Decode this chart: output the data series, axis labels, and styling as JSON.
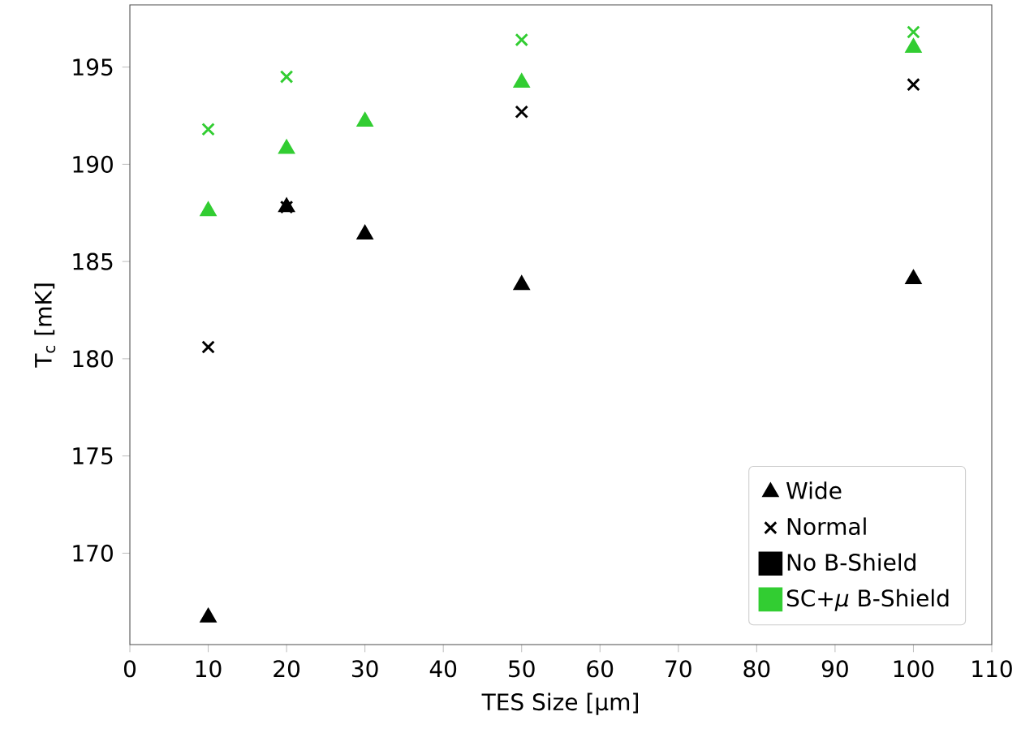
{
  "chart_data": {
    "type": "scatter",
    "xlabel": "TES Size [μm]",
    "ylabel": "T$_{c}$ [mK]",
    "x": [
      10,
      20,
      30,
      50,
      100
    ],
    "xlim": [
      0,
      110
    ],
    "xticks": [
      0,
      10,
      20,
      30,
      40,
      50,
      60,
      70,
      80,
      90,
      100,
      110
    ],
    "ylim": [
      165.3,
      198.2
    ],
    "yticks": [
      170,
      175,
      180,
      185,
      190,
      195
    ],
    "grid": false,
    "legend": "bottom right",
    "series": [
      {
        "name": "Wide",
        "color": "#000000",
        "marker": "triangle",
        "values": [
          166.7,
          187.8,
          186.4,
          183.8,
          184.1
        ]
      },
      {
        "name": "Normal",
        "color": "#000000",
        "marker": "cross",
        "values": [
          180.6,
          187.8,
          null,
          192.7,
          194.1
        ]
      },
      {
        "name": "No  B-Shield",
        "color": "#000000",
        "marker": "square",
        "values": [
          null,
          null,
          null,
          null,
          null
        ]
      },
      {
        "name": "SC+*μ*  B-Shield",
        "color": "#32cd32",
        "marker": "square",
        "values": [
          null,
          null,
          null,
          null,
          null
        ]
      },
      {
        "color": "#32cd32",
        "marker": "triangle",
        "values": [
          187.6,
          190.8,
          192.2,
          194.2,
          196.0
        ]
      },
      {
        "color": "#32cd32",
        "marker": "cross",
        "values": [
          191.8,
          194.5,
          null,
          196.4,
          196.8
        ]
      }
    ]
  }
}
